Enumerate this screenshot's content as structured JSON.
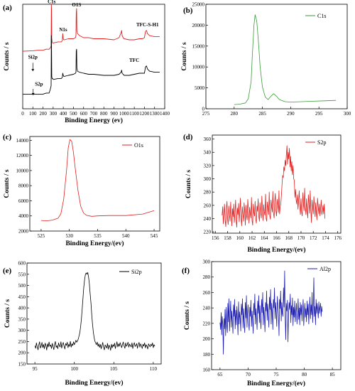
{
  "chart_data": [
    {
      "panel": "(a)",
      "type": "line",
      "xlabel": "Binding Energy (ev)",
      "ylabel": "Counts / s",
      "xlim": [
        0,
        1400
      ],
      "ylim": [
        0,
        100
      ],
      "xticks": [
        "0",
        "100",
        "200",
        "300",
        "400",
        "500",
        "600",
        "700",
        "800",
        "900",
        "1000",
        "1100",
        "1200",
        "1300",
        "1400"
      ],
      "yticks": [],
      "series": [
        {
          "name": "TFC-S-H1",
          "color": "#e02020",
          "x": [
            0,
            100,
            150,
            200,
            230,
            260,
            270,
            280,
            282,
            284,
            286,
            290,
            295,
            300,
            350,
            380,
            390,
            395,
            400,
            405,
            410,
            450,
            500,
            520,
            525,
            528,
            531,
            534,
            540,
            560,
            600,
            650,
            700,
            800,
            900,
            950,
            970,
            975,
            980,
            990,
            1000,
            1050,
            1100,
            1150,
            1180,
            1200,
            1210,
            1220,
            1230,
            1250,
            1300,
            1350
          ],
          "y": [
            55,
            55.5,
            56,
            56,
            57,
            57,
            58,
            60,
            100,
            95,
            68,
            64,
            63,
            63,
            64,
            64,
            65,
            72,
            67,
            66,
            66,
            67,
            67,
            68,
            70,
            92,
            96,
            75,
            72,
            70,
            68,
            68,
            67,
            67,
            66,
            68,
            73,
            75,
            70,
            68,
            67,
            66,
            66,
            67,
            67,
            68,
            74,
            75,
            72,
            70,
            69,
            69
          ]
        },
        {
          "name": "TFC",
          "color": "#000000",
          "x": [
            0,
            100,
            150,
            200,
            230,
            260,
            270,
            280,
            282,
            284,
            286,
            290,
            295,
            300,
            350,
            380,
            390,
            395,
            400,
            405,
            410,
            450,
            500,
            520,
            525,
            528,
            531,
            534,
            540,
            560,
            600,
            650,
            700,
            800,
            900,
            950,
            970,
            975,
            980,
            990,
            1000,
            1050,
            1100,
            1150,
            1180,
            1200,
            1210,
            1220,
            1230,
            1250,
            1300,
            1350
          ],
          "y": [
            14,
            14,
            14,
            14,
            15,
            15,
            18,
            22,
            70,
            60,
            31,
            29,
            29,
            28,
            29,
            29,
            30,
            34,
            32,
            31,
            31,
            32,
            33,
            34,
            35,
            55,
            57,
            39,
            36,
            35,
            34,
            33,
            33,
            32,
            32,
            33,
            35,
            37,
            34,
            33,
            32,
            32,
            33,
            34,
            34,
            34,
            40,
            41,
            38,
            36,
            35,
            35
          ]
        }
      ],
      "annotations": [
        {
          "text": "C1s",
          "x": 285,
          "y": 101
        },
        {
          "text": "O1S",
          "x": 531,
          "y": 98
        },
        {
          "text": "N1s",
          "x": 399,
          "y": 74
        },
        {
          "text": "TFC-S-H1",
          "x": 1230,
          "y": 79
        },
        {
          "text": "TFC",
          "x": 1100,
          "y": 45
        },
        {
          "text": "Si2p",
          "x": 100,
          "y": 48
        },
        {
          "text": "S2p",
          "x": 160,
          "y": 22
        }
      ],
      "legend": []
    },
    {
      "panel": "(b)",
      "type": "line",
      "xlabel": "",
      "ylabel": "Counts / s",
      "xlim": [
        275,
        300
      ],
      "ylim": [
        0,
        25000
      ],
      "xticks": [
        "275",
        "280",
        "285",
        "290",
        "295",
        "300"
      ],
      "yticks": [
        "0",
        "5000",
        "10000",
        "15000",
        "20000",
        "25000"
      ],
      "series": [
        {
          "name": "C1s",
          "color": "#3a9a3a",
          "x": [
            280,
            281,
            282,
            282.5,
            283,
            283.2,
            283.5,
            283.7,
            284,
            284.3,
            284.6,
            285,
            285.5,
            286,
            286.5,
            287,
            287.5,
            288,
            289,
            290,
            292,
            294,
            296,
            298
          ],
          "y": [
            1000,
            1100,
            1400,
            2400,
            6500,
            12500,
            20000,
            22500,
            21000,
            16000,
            10000,
            5200,
            2800,
            2200,
            3000,
            3600,
            3000,
            2200,
            1700,
            1600,
            1700,
            1800,
            1900,
            2000
          ]
        }
      ],
      "legend": [
        "C1s"
      ]
    },
    {
      "panel": "(c)",
      "type": "line",
      "xlabel": "Binding Energy/(ev)",
      "ylabel": "Counts / s",
      "xlim": [
        523,
        546
      ],
      "ylim": [
        2000,
        14500
      ],
      "xticks": [
        "525",
        "530",
        "535",
        "540",
        "545"
      ],
      "yticks": [
        "2000",
        "4000",
        "6000",
        "8000",
        "10000",
        "12000",
        "14000"
      ],
      "series": [
        {
          "name": "O1s",
          "color": "#e02020",
          "x": [
            525,
            526,
            527,
            528,
            528.5,
            529,
            529.5,
            529.8,
            530.1,
            530.4,
            530.7,
            531,
            531.5,
            532,
            532.5,
            533,
            533.5,
            534,
            535,
            537,
            540,
            543,
            545
          ],
          "y": [
            3400,
            3350,
            3450,
            3700,
            4300,
            6200,
            10000,
            13000,
            14100,
            13900,
            12500,
            10500,
            7500,
            5300,
            4400,
            4100,
            4000,
            3950,
            4000,
            4050,
            4050,
            4250,
            4700
          ]
        }
      ],
      "legend": [
        "O1s"
      ]
    },
    {
      "panel": "(d)",
      "type": "line",
      "xlabel": "Binding Energy/(ev)",
      "ylabel": "Counts / s",
      "xlim": [
        155.5,
        176.5
      ],
      "ylim": [
        218,
        366
      ],
      "xticks": [
        "156",
        "158",
        "160",
        "162",
        "164",
        "166",
        "168",
        "170",
        "172",
        "174",
        "176"
      ],
      "yticks": [
        "220",
        "240",
        "260",
        "280",
        "300",
        "320",
        "340",
        "360"
      ],
      "series": [
        {
          "name": "S2p",
          "color": "#e02020",
          "x_start": 157.1,
          "x_step": 0.1,
          "y": [
            245,
            258,
            232,
            250,
            262,
            237,
            228,
            254,
            266,
            240,
            231,
            259,
            246,
            236,
            265,
            248,
            229,
            255,
            243,
            262,
            234,
            250,
            268,
            238,
            227,
            256,
            246,
            263,
            235,
            252,
            271,
            240,
            229,
            258,
            247,
            236,
            264,
            250,
            230,
            260,
            244,
            238,
            269,
            252,
            233,
            257,
            248,
            241,
            272,
            237,
            230,
            262,
            249,
            244,
            266,
            239,
            233,
            259,
            251,
            270,
            243,
            236,
            264,
            248,
            241,
            274,
            253,
            237,
            261,
            249,
            245,
            277,
            240,
            236,
            265,
            256,
            246,
            280,
            244,
            239,
            268,
            258,
            250,
            281,
            248,
            241,
            266,
            278,
            252,
            244,
            269,
            261,
            249,
            282,
            247,
            258,
            262,
            276,
            293,
            305,
            302,
            318,
            312,
            328,
            320,
            336,
            350,
            322,
            340,
            330,
            346,
            318,
            334,
            312,
            326,
            306,
            320,
            300,
            298,
            272,
            284,
            268,
            262,
            276,
            254,
            266,
            282,
            258,
            246,
            270,
            250,
            244,
            279,
            262,
            252,
            286,
            257,
            246,
            270,
            252,
            241,
            276,
            262,
            248,
            282,
            252,
            234,
            268,
            256,
            247,
            273,
            258,
            243,
            264,
            250,
            238,
            271,
            259,
            247,
            262,
            244,
            256,
            268,
            246,
            252,
            260,
            247,
            262,
            240
          ]
        }
      ],
      "legend": [
        "S2p"
      ]
    },
    {
      "panel": "(e)",
      "type": "line",
      "xlabel": "Binding Energy/(ev)",
      "ylabel": "Counts / s",
      "xlim": [
        94,
        111
      ],
      "ylim": [
        150,
        600
      ],
      "xticks": [
        "95",
        "100",
        "105",
        "110"
      ],
      "yticks": [
        "150",
        "200",
        "250",
        "300",
        "350",
        "400",
        "450",
        "500",
        "550",
        "600"
      ],
      "series": [
        {
          "name": "Si2p",
          "color": "#000000",
          "x_start": 95.0,
          "x_step": 0.1,
          "y": [
            231,
            220,
            244,
            226,
            213,
            236,
            249,
            221,
            230,
            246,
            223,
            237,
            218,
            243,
            232,
            212,
            240,
            226,
            248,
            229,
            235,
            219,
            242,
            227,
            214,
            239,
            250,
            224,
            232,
            218,
            244,
            231,
            226,
            249,
            221,
            236,
            246,
            229,
            217,
            241,
            233,
            247,
            223,
            238,
            228,
            251,
            225,
            240,
            232,
            249,
            236,
            244,
            256,
            247,
            253,
            262,
            276,
            291,
            318,
            352,
            398,
            445,
            492,
            527,
            549,
            556,
            550,
            558,
            538,
            510,
            466,
            423,
            371,
            328,
            294,
            269,
            252,
            244,
            236,
            248,
            229,
            240,
            224,
            237,
            218,
            232,
            246,
            225,
            213,
            235,
            228,
            221,
            242,
            216,
            234,
            227,
            211,
            238,
            222,
            236,
            228,
            243,
            219,
            233,
            249,
            226,
            240,
            229,
            245,
            234,
            223,
            237,
            248,
            231,
            220,
            244,
            229,
            236,
            247,
            225,
            239,
            232,
            226,
            244,
            219,
            236,
            245,
            228,
            233,
            241,
            220,
            238,
            246,
            225,
            240,
            231,
            219,
            238,
            230,
            244,
            222,
            236,
            229,
            217,
            240,
            233,
            226,
            238,
            231,
            244,
            223,
            236,
            229
          ]
        }
      ],
      "legend": [
        "Si2p"
      ]
    },
    {
      "panel": "(f)",
      "type": "line",
      "xlabel": "Binding Energy/(ev)",
      "ylabel": "Counts / s",
      "xlim": [
        63.5,
        86.5
      ],
      "ylim": [
        160,
        300
      ],
      "xticks": [
        "65",
        "70",
        "75",
        "80",
        "85"
      ],
      "yticks": [
        "160",
        "180",
        "200",
        "220",
        "240",
        "260",
        "280",
        "300"
      ],
      "series": [
        {
          "name": "Al2p",
          "color": "#1c1cb0",
          "x_start": 65.0,
          "x_step": 0.1,
          "y": [
            221,
            212,
            234,
            205,
            229,
            219,
            180,
            226,
            213,
            238,
            204,
            241,
            217,
            208,
            246,
            222,
            252,
            210,
            231,
            249,
            215,
            236,
            223,
            207,
            244,
            229,
            251,
            213,
            237,
            218,
            242,
            226,
            205,
            248,
            219,
            235,
            225,
            210,
            245,
            231,
            252,
            214,
            239,
            221,
            208,
            247,
            227,
            256,
            215,
            232,
            244,
            220,
            211,
            241,
            229,
            250,
            216,
            236,
            224,
            207,
            246,
            231,
            258,
            219,
            239,
            227,
            212,
            249,
            233,
            256,
            221,
            243,
            226,
            213,
            251,
            234,
            260,
            218,
            241,
            229,
            209,
            247,
            236,
            262,
            224,
            245,
            231,
            215,
            254,
            238,
            264,
            219,
            246,
            233,
            212,
            251,
            240,
            266,
            226,
            247,
            235,
            216,
            255,
            243,
            231,
            204,
            251,
            239,
            262,
            223,
            247,
            233,
            229,
            266,
            241,
            288,
            226,
            199,
            246,
            236,
            250,
            196,
            232,
            247,
            238,
            258,
            221,
            243,
            231,
            253,
            217,
            241,
            228,
            249,
            222,
            236,
            246,
            219,
            234,
            252,
            225,
            240,
            218,
            247,
            231,
            244,
            223,
            238,
            251,
            217,
            233,
            246,
            228,
            239,
            222,
            249,
            231,
            245,
            219,
            238,
            254,
            226,
            244,
            231,
            260,
            221,
            240,
            279,
            229,
            242,
            218,
            251,
            233,
            246,
            236,
            227,
            248,
            233,
            240,
            246,
            229,
            242,
            235
          ]
        }
      ],
      "legend": [
        "Al2p"
      ]
    }
  ]
}
